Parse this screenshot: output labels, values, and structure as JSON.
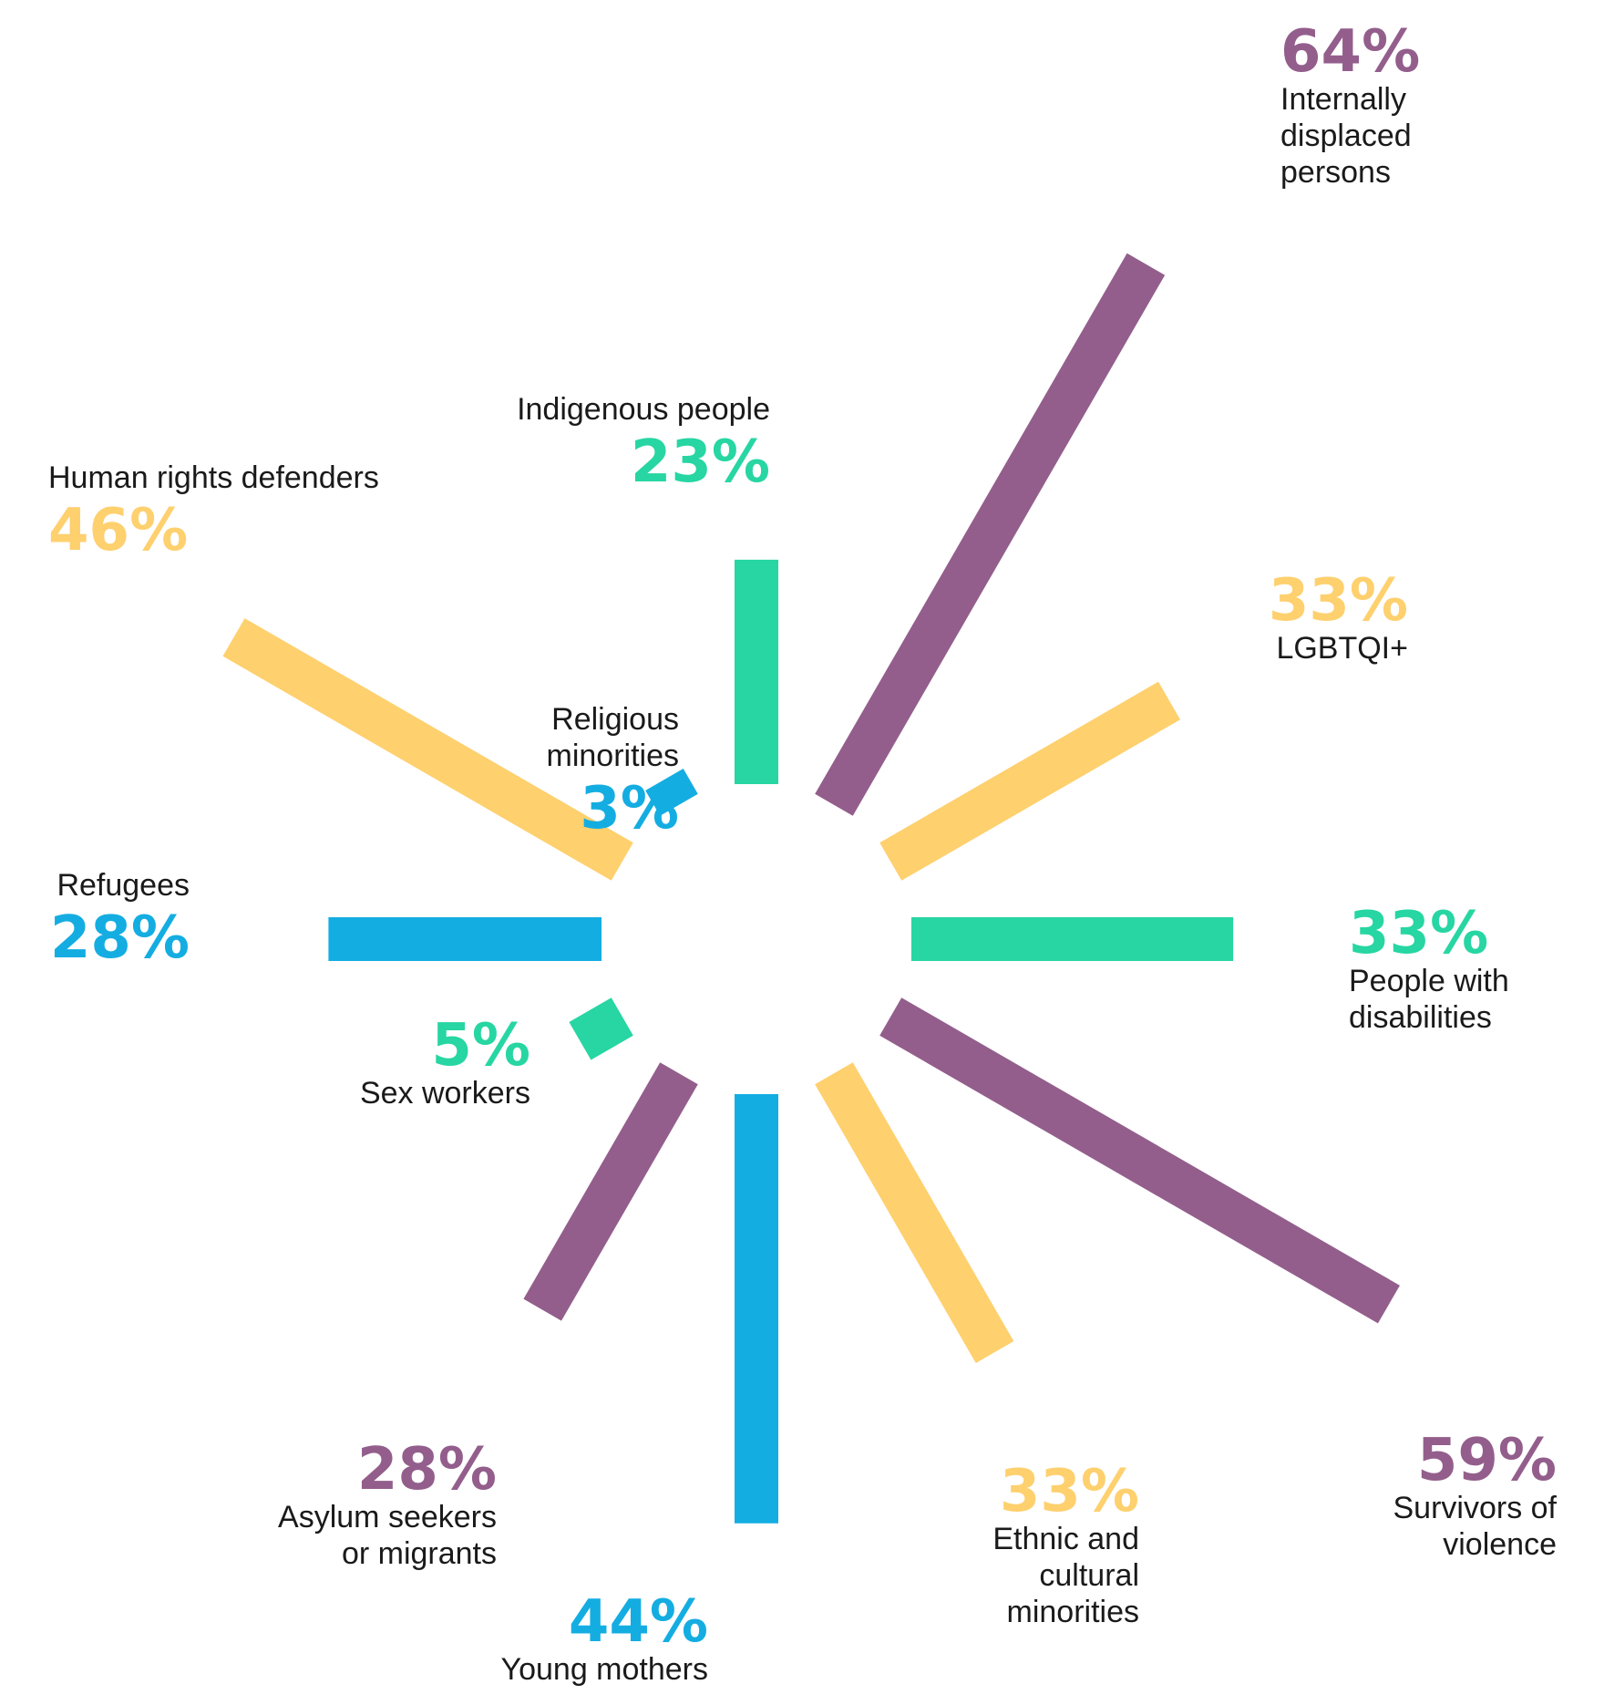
{
  "chart_data": {
    "type": "bar",
    "layout": "radial",
    "colors": {
      "purple": "#935e8c",
      "yellow": "#fed06e",
      "green": "#27d6a2",
      "blue": "#14ade2"
    },
    "categories": [
      "Indigenous people",
      "Internally displaced persons",
      "LGBTQI+",
      "People with disabilities",
      "Survivors of violence",
      "Ethnic and cultural minorities",
      "Young mothers",
      "Asylum seekers or migrants",
      "Sex workers",
      "Refugees",
      "Human rights defenders",
      "Religious minorities"
    ],
    "values": [
      23,
      64,
      33,
      33,
      59,
      33,
      44,
      28,
      5,
      28,
      46,
      3
    ],
    "bars": [
      {
        "label_lines": [
          "Indigenous people"
        ],
        "value": 23,
        "value_text": "23%",
        "color": "#27d6a2",
        "label_position": "above"
      },
      {
        "label_lines": [
          "Internally",
          "displaced",
          "persons"
        ],
        "value": 64,
        "value_text": "64%",
        "color": "#935e8c",
        "label_position": "right"
      },
      {
        "label_lines": [
          "LGBTQI+"
        ],
        "value": 33,
        "value_text": "33%",
        "color": "#fed06e",
        "label_position": "right"
      },
      {
        "label_lines": [
          "People with",
          "disabilities"
        ],
        "value": 33,
        "value_text": "33%",
        "color": "#27d6a2",
        "label_position": "right"
      },
      {
        "label_lines": [
          "Survivors of",
          "violence"
        ],
        "value": 59,
        "value_text": "59%",
        "color": "#935e8c",
        "label_position": "below"
      },
      {
        "label_lines": [
          "Ethnic and",
          "cultural",
          "minorities"
        ],
        "value": 33,
        "value_text": "33%",
        "color": "#fed06e",
        "label_position": "below"
      },
      {
        "label_lines": [
          "Young mothers"
        ],
        "value": 44,
        "value_text": "44%",
        "color": "#14ade2",
        "label_position": "left"
      },
      {
        "label_lines": [
          "Asylum seekers",
          "or migrants"
        ],
        "value": 28,
        "value_text": "28%",
        "color": "#935e8c",
        "label_position": "below"
      },
      {
        "label_lines": [
          "Sex workers"
        ],
        "value": 5,
        "value_text": "5%",
        "color": "#27d6a2",
        "label_position": "left"
      },
      {
        "label_lines": [
          "Refugees"
        ],
        "value": 28,
        "value_text": "28%",
        "color": "#14ade2",
        "label_position": "left"
      },
      {
        "label_lines": [
          "Human rights defenders"
        ],
        "value": 46,
        "value_text": "46%",
        "color": "#fed06e",
        "label_position": "above"
      },
      {
        "label_lines": [
          "Religious",
          "minorities"
        ],
        "value": 3,
        "value_text": "3%",
        "color": "#14ade2",
        "label_position": "above"
      }
    ]
  }
}
